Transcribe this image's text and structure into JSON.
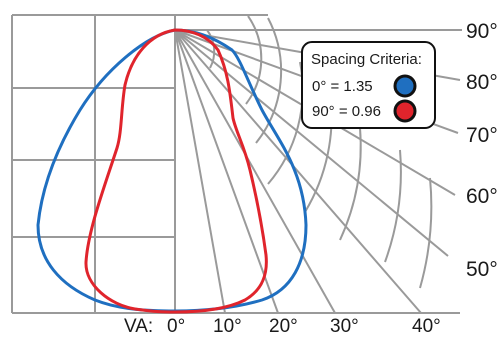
{
  "legend": {
    "title": "Spacing Criteria:",
    "items": [
      {
        "label": "0° = 1.35",
        "color": "#1f6fc0"
      },
      {
        "label": "90° = 0.96",
        "color": "#e0242c"
      }
    ]
  },
  "right_angle_labels": [
    "90°",
    "80°",
    "70°",
    "60°",
    "50°"
  ],
  "bottom_labels": {
    "prefix": "VA:",
    "angles": [
      "0°",
      "10°",
      "20°",
      "30°",
      "40°"
    ]
  },
  "curves": {
    "zero_degree_color": "#1f6fc0",
    "ninety_degree_color": "#e0242c"
  },
  "grid_color": "#9a9a9a"
}
